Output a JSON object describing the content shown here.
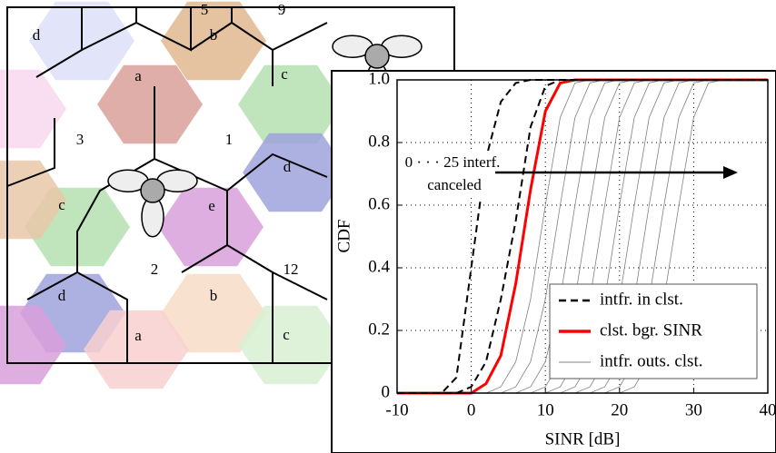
{
  "diagram": {
    "labels": [
      "5",
      "9",
      "d",
      "b",
      "a",
      "c",
      "3",
      "1",
      "d",
      "c",
      "e",
      "2",
      "12",
      "d",
      "b",
      "a",
      "c"
    ]
  },
  "chart_data": {
    "type": "line",
    "xlabel": "SINR [dB]",
    "ylabel": "CDF",
    "annotations": [
      "0 · · · 25 interf.",
      "canceled"
    ],
    "x": [
      -10,
      -4,
      -2,
      0,
      2,
      4,
      6,
      8,
      10,
      12,
      14,
      16,
      18,
      20,
      22,
      24,
      26,
      28,
      30,
      32,
      34,
      40
    ],
    "xlim": [
      -10,
      40
    ],
    "xticks": [
      -10,
      0,
      10,
      20,
      30,
      40
    ],
    "ylim": [
      0,
      1
    ],
    "yticks": [
      0,
      0.2,
      0.4,
      0.6,
      0.8,
      {
        "value": 1,
        "label": "1.0"
      }
    ],
    "grid": true,
    "legend": "lower right",
    "series": [
      {
        "name": "intfr. in clst.",
        "color": "#000000",
        "dashed": true,
        "width": 2,
        "curves": [
          [
            0,
            0,
            0.05,
            0.4,
            0.75,
            0.93,
            0.99,
            1,
            1,
            1,
            1,
            1,
            1,
            1,
            1,
            1,
            1,
            1,
            1,
            1,
            1,
            1
          ],
          [
            0,
            0,
            0,
            0.02,
            0.1,
            0.3,
            0.55,
            0.85,
            0.98,
            1,
            1,
            1,
            1,
            1,
            1,
            1,
            1,
            1,
            1,
            1,
            1,
            1
          ]
        ]
      },
      {
        "name": "clst. bgr. SINR",
        "color": "#ff0000",
        "dashed": false,
        "width": 3,
        "curves": [
          [
            0,
            0,
            0,
            0,
            0.03,
            0.12,
            0.35,
            0.65,
            0.9,
            0.99,
            1,
            1,
            1,
            1,
            1,
            1,
            1,
            1,
            1,
            1,
            1,
            1
          ]
        ]
      },
      {
        "name": "intfr. outs. clst.",
        "color": "#808080",
        "dashed": false,
        "width": 0.8,
        "curves": [
          [
            0,
            0,
            0,
            0,
            0,
            0.02,
            0.1,
            0.3,
            0.6,
            0.88,
            0.99,
            1,
            1,
            1,
            1,
            1,
            1,
            1,
            1,
            1,
            1,
            1
          ],
          [
            0,
            0,
            0,
            0,
            0,
            0,
            0.02,
            0.1,
            0.3,
            0.6,
            0.88,
            0.99,
            1,
            1,
            1,
            1,
            1,
            1,
            1,
            1,
            1,
            1
          ],
          [
            0,
            0,
            0,
            0,
            0,
            0,
            0,
            0.02,
            0.1,
            0.3,
            0.6,
            0.88,
            0.99,
            1,
            1,
            1,
            1,
            1,
            1,
            1,
            1,
            1
          ],
          [
            0,
            0,
            0,
            0,
            0,
            0,
            0,
            0,
            0.02,
            0.1,
            0.3,
            0.6,
            0.88,
            0.99,
            1,
            1,
            1,
            1,
            1,
            1,
            1,
            1
          ],
          [
            0,
            0,
            0,
            0,
            0,
            0,
            0,
            0,
            0,
            0.02,
            0.1,
            0.3,
            0.6,
            0.88,
            0.99,
            1,
            1,
            1,
            1,
            1,
            1,
            1
          ],
          [
            0,
            0,
            0,
            0,
            0,
            0,
            0,
            0,
            0,
            0,
            0.02,
            0.1,
            0.3,
            0.6,
            0.88,
            0.99,
            1,
            1,
            1,
            1,
            1,
            1
          ],
          [
            0,
            0,
            0,
            0,
            0,
            0,
            0,
            0,
            0,
            0,
            0,
            0.02,
            0.1,
            0.3,
            0.6,
            0.88,
            0.99,
            1,
            1,
            1,
            1,
            1
          ],
          [
            0,
            0,
            0,
            0,
            0,
            0,
            0,
            0,
            0,
            0,
            0,
            0,
            0.02,
            0.1,
            0.3,
            0.6,
            0.88,
            0.99,
            1,
            1,
            1,
            1
          ],
          [
            0,
            0,
            0,
            0,
            0,
            0,
            0,
            0,
            0,
            0,
            0,
            0,
            0,
            0.02,
            0.1,
            0.3,
            0.6,
            0.88,
            0.99,
            1,
            1,
            1
          ],
          [
            0,
            0,
            0,
            0,
            0,
            0,
            0,
            0,
            0,
            0,
            0,
            0,
            0,
            0,
            0.02,
            0.1,
            0.3,
            0.6,
            0.88,
            0.99,
            1,
            1
          ]
        ]
      }
    ]
  }
}
